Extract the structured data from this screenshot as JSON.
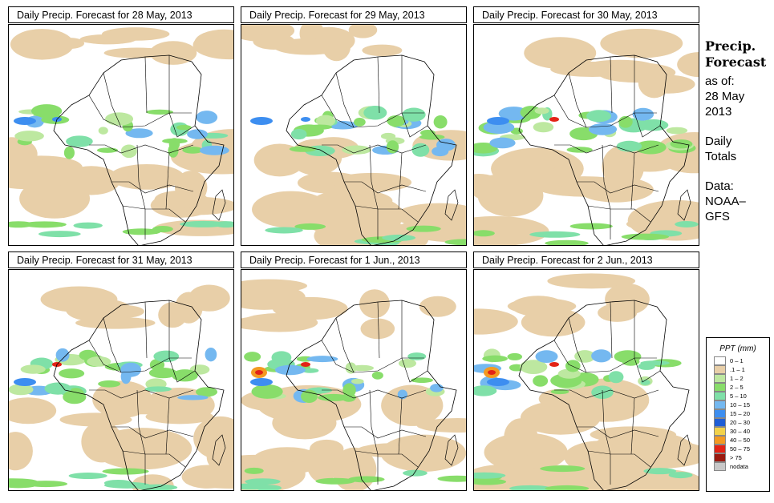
{
  "panels": [
    {
      "title": "Daily Precip. Forecast for  28 May, 2013",
      "col": 0,
      "row": 0
    },
    {
      "title": "Daily Precip. Forecast for  29 May, 2013",
      "col": 1,
      "row": 0
    },
    {
      "title": "Daily Precip. Forecast for  30 May, 2013",
      "col": 2,
      "row": 0
    },
    {
      "title": "Daily Precip. Forecast for  31 May, 2013",
      "col": 0,
      "row": 1
    },
    {
      "title": "Daily Precip. Forecast for  1 Jun., 2013",
      "col": 1,
      "row": 1
    },
    {
      "title": "Daily Precip. Forecast for  2 Jun., 2013",
      "col": 2,
      "row": 1
    }
  ],
  "side": {
    "title_line1": "Precip.",
    "title_line2": "Forecast",
    "as_of": "as of:",
    "date_line1": "28 May",
    "date_line2": "2013",
    "totals_line1": "Daily",
    "totals_line2": "Totals",
    "data_line1": "Data:",
    "data_line2": "NOAA–",
    "data_line3": "GFS"
  },
  "legend": {
    "title": "PPT (mm)",
    "items": [
      {
        "label": "0 – 1",
        "color": "#ffffff"
      },
      {
        "label": ".1 – 1",
        "color": "#e8cfa8"
      },
      {
        "label": "1 – 2",
        "color": "#bde8a0"
      },
      {
        "label": "2 – 5",
        "color": "#88dd6a"
      },
      {
        "label": "5 – 10",
        "color": "#7fe0a8"
      },
      {
        "label": "10 – 15",
        "color": "#74b8f0"
      },
      {
        "label": "15 – 20",
        "color": "#3d8ef0"
      },
      {
        "label": "20 – 30",
        "color": "#1f5ed6"
      },
      {
        "label": "30 – 40",
        "color": "#f2d24a"
      },
      {
        "label": "40 – 50",
        "color": "#f39a22"
      },
      {
        "label": "50 – 75",
        "color": "#e32316"
      },
      {
        "label": "> 75",
        "color": "#9b1a10"
      },
      {
        "label": "nodata",
        "color": "#c8c8c8"
      }
    ]
  }
}
